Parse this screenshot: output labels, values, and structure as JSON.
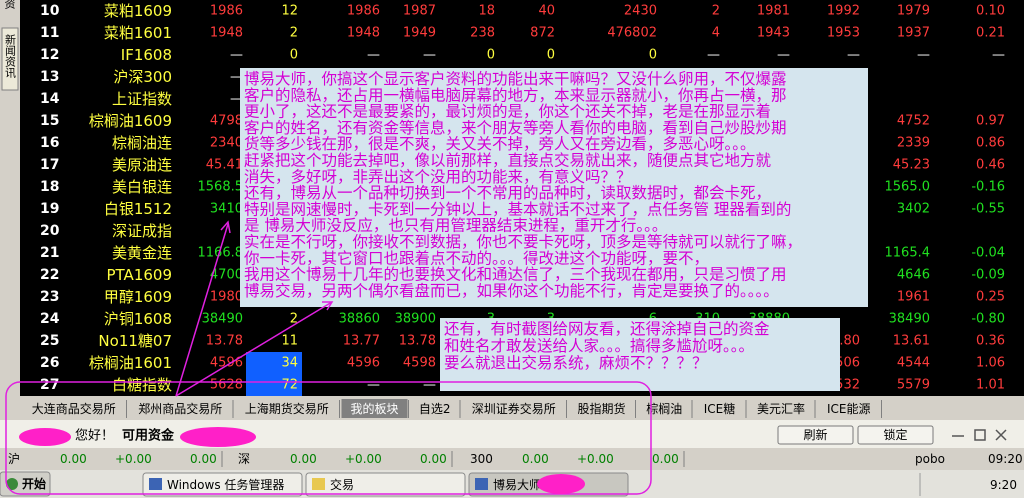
{
  "sidebar": {
    "tabs": [
      "资",
      "新闻资讯"
    ]
  },
  "table": {
    "rows": [
      {
        "index": 10,
        "name": "菜粕1609",
        "color": "#ff3c3c",
        "cells": [
          "1986",
          "12",
          "1986",
          "1987",
          "18",
          "40",
          "2430",
          "2",
          "1981",
          "1992",
          "1979",
          "0.10"
        ]
      },
      {
        "index": 11,
        "name": "菜粕1601",
        "color": "#ff3c3c",
        "cells": [
          "1948",
          "2",
          "1948",
          "1949",
          "238",
          "872",
          "476802",
          "4",
          "1943",
          "1953",
          "1937",
          "0.21"
        ]
      },
      {
        "index": 12,
        "name": "IF1608",
        "color": "#ffff40",
        "cells": [
          "—",
          "0",
          "—",
          "—",
          "0",
          "0",
          "0",
          "—",
          "—",
          "—",
          "—",
          "—"
        ]
      },
      {
        "index": 13,
        "name": "沪深300",
        "color": "#ffffff",
        "cells": [
          "—",
          null,
          null,
          null,
          null,
          null,
          null,
          null,
          null,
          null,
          null,
          null
        ]
      },
      {
        "index": 14,
        "name": "上证指数",
        "color": "#ffffff",
        "cells": [
          "—",
          null,
          null,
          null,
          null,
          null,
          null,
          null,
          null,
          null,
          null,
          null
        ]
      },
      {
        "index": 15,
        "name": "棕榈油1609",
        "color": "#ff3c3c",
        "cells": [
          "4798",
          null,
          null,
          null,
          null,
          null,
          null,
          null,
          null,
          null,
          "4752",
          "0.97"
        ]
      },
      {
        "index": 16,
        "name": "棕榈油连",
        "color": "#ff3c3c",
        "cells": [
          "2340",
          null,
          null,
          null,
          null,
          null,
          null,
          null,
          null,
          null,
          "2339",
          "0.86"
        ]
      },
      {
        "index": 17,
        "name": "美原油连",
        "color": "#ff3c3c",
        "cells": [
          "45.41",
          null,
          null,
          null,
          null,
          null,
          null,
          null,
          null,
          null,
          "45.23",
          "0.46"
        ]
      },
      {
        "index": 18,
        "name": "美白银连",
        "color": "#20e020",
        "cells": [
          "1568.5",
          null,
          null,
          null,
          null,
          null,
          null,
          null,
          null,
          null,
          "1565.0",
          "-0.16"
        ]
      },
      {
        "index": 19,
        "name": "白银1512",
        "color": "#20e020",
        "cells": [
          "3410",
          null,
          null,
          null,
          null,
          null,
          null,
          null,
          null,
          null,
          "3402",
          "-0.55"
        ]
      },
      {
        "index": 20,
        "name": "深证成指",
        "color": "#ffffff",
        "cells": [
          null,
          null,
          null,
          null,
          null,
          null,
          null,
          null,
          null,
          null,
          null,
          null
        ]
      },
      {
        "index": 21,
        "name": "美黄金连",
        "color": "#20e020",
        "cells": [
          "1166.8",
          null,
          null,
          null,
          null,
          null,
          null,
          null,
          null,
          null,
          "1165.4",
          "-0.04"
        ]
      },
      {
        "index": 22,
        "name": "PTA1609",
        "color": "#20e020",
        "cells": [
          "4700",
          null,
          null,
          null,
          null,
          null,
          null,
          null,
          null,
          null,
          "4646",
          "-0.09"
        ]
      },
      {
        "index": 23,
        "name": "甲醇1609",
        "color": "#ff3c3c",
        "cells": [
          "1980",
          null,
          null,
          null,
          null,
          null,
          null,
          null,
          null,
          null,
          "1961",
          "0.25"
        ]
      },
      {
        "index": 24,
        "name": "沪铜1608",
        "color": "#20e020",
        "cells": [
          "38490",
          "2",
          "38860",
          "38900",
          "3",
          "3",
          "6",
          "310",
          "38880",
          null,
          "38490",
          "-0.80"
        ]
      },
      {
        "index": 25,
        "name": "No11糖07",
        "color": "#ff3c3c",
        "cells": [
          "13.78",
          "11",
          "13.77",
          "13.78",
          null,
          null,
          null,
          null,
          null,
          "13.80",
          "13.61",
          "0.36"
        ]
      },
      {
        "index": 26,
        "name": "棕榈油1601",
        "color": "#ff3c3c",
        "highlight": 1,
        "cells": [
          "4596",
          "34",
          "4596",
          "4598",
          null,
          null,
          null,
          null,
          null,
          "506",
          "4544",
          "1.06"
        ]
      },
      {
        "index": 27,
        "name": "白糖指数",
        "color": "#ff3c3c",
        "highlight": 1,
        "cells": [
          "5628",
          "72",
          "—",
          "—",
          null,
          null,
          null,
          null,
          null,
          "532",
          "5579",
          "1.01"
        ]
      }
    ]
  },
  "annotations": [
    {
      "lines": [
        "博易大师，你搞这个显示客户资料的功能出来干嘛吗？又没什么卵用，不仅爆露",
        "客户的隐私，还占用一横幅电脑屏幕的地方，本来显示器就小，你再占一横，那",
        "更小了，这还不是最要紧的，最讨烦的是，你这个还关不掉，老是在那显示着",
        "客户的姓名，还有资金等信息，来个朋友等旁人看你的电脑，看到自己炒股炒期",
        "货等多少钱在那，很是不爽，关又关不掉，旁人又在旁边看，多恶心呀。。。",
        "赶紧把这个功能去掉吧，像以前那样，直接点交易就出来，随便点其它地方就",
        "消失，多好呀，非弄出这个没用的功能来，有意义吗？？",
        "还有，博易从一个品种切换到一个不常用的品种时，读取数据时，都会卡死，",
        "特别是网速慢时，卡死到一分钟以上，基本就话不过来了，点任务管 理器看到的",
        "是 博易大师没反应，也只有用管理器结束进程，重开才行。。。",
        "实在是不行呀，你接收不到数据，你也不要卡死呀，顶多是等待就可以就行了嘛，",
        "你一卡死，其它窗口也跟着点不动的。。。得改进这个功能呀，要不，",
        "我用这个博易十几年的也要换文化和通达信了，三个我现在都用，只是习惯了用",
        "博易交易，另两个偶尔看盘而已，如果你这个功能不行，肯定是要换了的。。。。"
      ]
    },
    {
      "lines": [
        "还有，有时截图给网友看，还得涂掉自己的资金",
        "和姓名才敢发送给人家。。。搞得多尴尬呀。。。",
        "要么就退出交易系统，麻烦不？？？？"
      ]
    }
  ],
  "tabs": {
    "items": [
      "大连商品交易所",
      "郑州商品交易所",
      "上海期货交易所",
      "我的板块",
      "自选2",
      "深圳证券交易所",
      "股指期货",
      "棕榈油",
      "ICE糖",
      "美元汇率",
      "ICE能源"
    ],
    "selected": 3
  },
  "status": {
    "greeting": "您好！",
    "funds_label": "可用资金",
    "buttons": [
      "刷新",
      "锁定"
    ]
  },
  "index_bar": {
    "markets": [
      {
        "name": "沪",
        "values": [
          "0.00",
          "+0.00",
          "0.00"
        ]
      },
      {
        "name": "深",
        "values": [
          "0.00",
          "+0.00",
          "0.00"
        ]
      },
      {
        "name": "300",
        "values": [
          "0.00",
          "+0.00",
          "0.00"
        ]
      }
    ],
    "brand": "pobo",
    "time": "09:20"
  },
  "taskbar": {
    "start": "开始",
    "windows": [
      "Windows 任务管理器",
      "交易",
      "博易大师"
    ],
    "clock": "9:20"
  }
}
